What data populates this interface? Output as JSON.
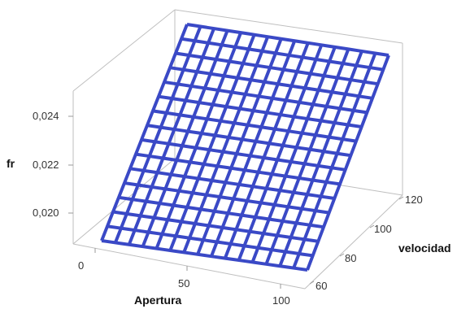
{
  "chart_data": {
    "type": "surface",
    "x_axis": {
      "label": "Apertura",
      "ticks": [
        "0",
        "50",
        "100"
      ],
      "range": [
        0,
        100
      ]
    },
    "y_axis": {
      "label": "velocidad",
      "ticks": [
        "60",
        "80",
        "100",
        "120"
      ],
      "range": [
        55,
        125
      ]
    },
    "z_axis": {
      "label": "fr",
      "ticks": [
        "0,020",
        "0,022",
        "0,024"
      ],
      "range": [
        0.0188,
        0.0258
      ]
    },
    "grid_lines": 16,
    "surface": {
      "z_low_apertura": 0.0188,
      "z_high_apertura": 0.0258,
      "note_dependency": ""
    },
    "colors": {
      "surface": "#3a49c6",
      "frame": "#bfbfbf"
    }
  }
}
